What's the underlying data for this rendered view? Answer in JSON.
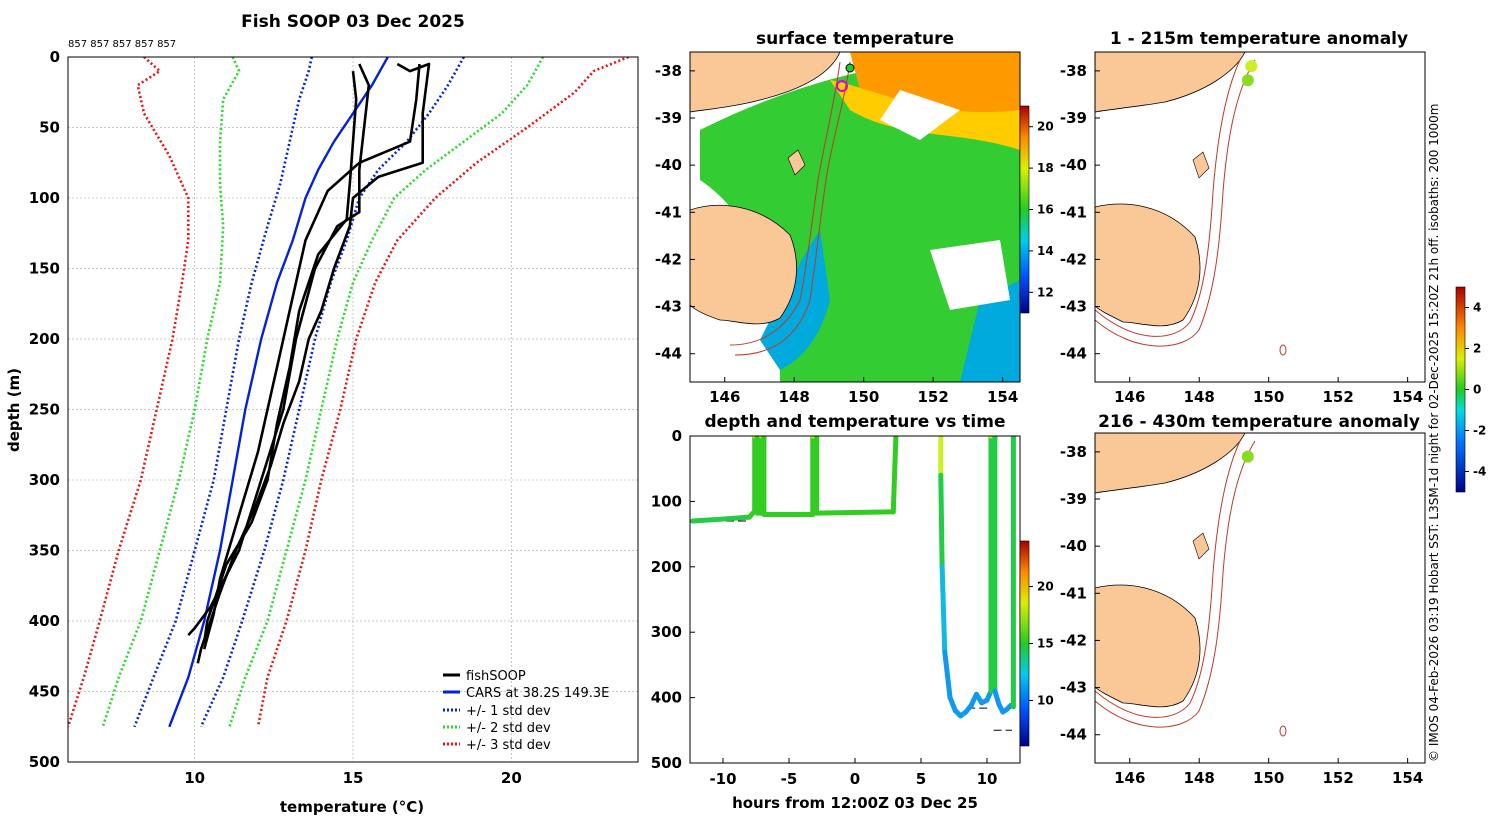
{
  "colors": {
    "land": "#f9c896",
    "isobath": "#c0392b",
    "fishsoop": "#000000",
    "cars": "#0022dd",
    "std1": "#0022dd",
    "std2": "#22dd22",
    "std3": "#ee1111",
    "ocean_warm": "#ff9900",
    "ocean_mid": "#33cc33",
    "ocean_cool": "#00aadd"
  },
  "profile_chart": {
    "type": "line",
    "title": "Fish SOOP 03 Dec 2025",
    "profile_ids": "857 857 857 857 857",
    "xlabel": "temperature",
    "xlabel_units": "(°C)",
    "ylabel": "depth (m)",
    "xlim": [
      6,
      24
    ],
    "ylim": [
      0,
      500
    ],
    "xticks": [
      "10",
      "15",
      "20"
    ],
    "yticks": [
      "0",
      "50",
      "100",
      "150",
      "200",
      "250",
      "300",
      "350",
      "400",
      "450",
      "500"
    ],
    "legend": [
      "fishSOOP",
      "CARS at 38.2S 149.3E",
      "+/- 1 std dev",
      "+/- 2 std dev",
      "+/- 3 std dev"
    ],
    "legend_position": "bottom-right",
    "series": {
      "cars": [
        [
          16.1,
          0
        ],
        [
          15.6,
          20
        ],
        [
          15.0,
          40
        ],
        [
          14.4,
          60
        ],
        [
          13.9,
          80
        ],
        [
          13.5,
          100
        ],
        [
          13.1,
          130
        ],
        [
          12.6,
          160
        ],
        [
          12.1,
          200
        ],
        [
          11.6,
          250
        ],
        [
          11.2,
          300
        ],
        [
          10.8,
          350
        ],
        [
          10.3,
          400
        ],
        [
          9.8,
          440
        ],
        [
          9.2,
          475
        ]
      ],
      "std1_lo": [
        [
          13.7,
          0
        ],
        [
          13.6,
          10
        ],
        [
          13.3,
          30
        ],
        [
          13.0,
          60
        ],
        [
          12.7,
          90
        ],
        [
          12.3,
          120
        ],
        [
          11.8,
          160
        ],
        [
          11.4,
          200
        ],
        [
          11.0,
          250
        ],
        [
          10.6,
          300
        ],
        [
          10.0,
          350
        ],
        [
          9.4,
          400
        ],
        [
          8.7,
          440
        ],
        [
          8.1,
          475
        ]
      ],
      "std1_hi": [
        [
          18.5,
          0
        ],
        [
          18.0,
          20
        ],
        [
          17.4,
          40
        ],
        [
          16.7,
          60
        ],
        [
          15.8,
          80
        ],
        [
          15.2,
          100
        ],
        [
          14.8,
          130
        ],
        [
          14.3,
          160
        ],
        [
          13.8,
          200
        ],
        [
          13.3,
          250
        ],
        [
          12.8,
          300
        ],
        [
          12.2,
          350
        ],
        [
          11.5,
          400
        ],
        [
          10.9,
          440
        ],
        [
          10.2,
          475
        ]
      ],
      "std2_lo": [
        [
          11.2,
          0
        ],
        [
          11.4,
          10
        ],
        [
          10.9,
          30
        ],
        [
          10.8,
          60
        ],
        [
          10.8,
          90
        ],
        [
          10.9,
          120
        ],
        [
          10.8,
          160
        ],
        [
          10.4,
          200
        ],
        [
          10.0,
          250
        ],
        [
          9.5,
          300
        ],
        [
          8.9,
          350
        ],
        [
          8.3,
          400
        ],
        [
          7.6,
          440
        ],
        [
          7.1,
          475
        ]
      ],
      "std2_hi": [
        [
          21.0,
          0
        ],
        [
          20.5,
          20
        ],
        [
          19.7,
          40
        ],
        [
          18.5,
          60
        ],
        [
          17.3,
          80
        ],
        [
          16.3,
          100
        ],
        [
          15.6,
          130
        ],
        [
          15.0,
          160
        ],
        [
          14.5,
          200
        ],
        [
          14.0,
          250
        ],
        [
          13.5,
          300
        ],
        [
          12.9,
          350
        ],
        [
          12.3,
          400
        ],
        [
          11.6,
          440
        ],
        [
          11.1,
          475
        ]
      ],
      "std3_lo": [
        [
          8.4,
          0
        ],
        [
          8.9,
          10
        ],
        [
          8.2,
          20
        ],
        [
          8.4,
          40
        ],
        [
          9.2,
          70
        ],
        [
          9.8,
          100
        ],
        [
          9.8,
          130
        ],
        [
          9.6,
          160
        ],
        [
          9.3,
          200
        ],
        [
          8.8,
          250
        ],
        [
          8.3,
          300
        ],
        [
          7.6,
          350
        ],
        [
          7.0,
          400
        ],
        [
          6.5,
          440
        ],
        [
          6.0,
          475
        ]
      ],
      "std3_hi": [
        [
          23.7,
          0
        ],
        [
          22.6,
          10
        ],
        [
          22.0,
          25
        ],
        [
          20.5,
          50
        ],
        [
          18.9,
          75
        ],
        [
          17.6,
          100
        ],
        [
          16.4,
          130
        ],
        [
          15.7,
          160
        ],
        [
          15.1,
          200
        ],
        [
          14.6,
          250
        ],
        [
          14.0,
          300
        ],
        [
          13.5,
          350
        ],
        [
          12.9,
          400
        ],
        [
          12.3,
          440
        ],
        [
          12.0,
          475
        ]
      ],
      "fishsoop_casts": [
        [
          [
            16.4,
            5
          ],
          [
            16.8,
            10
          ],
          [
            17.4,
            5
          ],
          [
            17.2,
            40
          ],
          [
            17.2,
            75
          ],
          [
            15.8,
            85
          ],
          [
            15.0,
            100
          ],
          [
            14.9,
            120
          ],
          [
            14.4,
            150
          ],
          [
            14.0,
            180
          ],
          [
            13.6,
            200
          ],
          [
            13.3,
            230
          ],
          [
            12.8,
            260
          ],
          [
            12.4,
            290
          ],
          [
            11.9,
            320
          ],
          [
            11.3,
            350
          ],
          [
            10.8,
            380
          ],
          [
            10.5,
            400
          ],
          [
            10.2,
            420
          ],
          [
            10.1,
            430
          ]
        ],
        [
          [
            15.2,
            5
          ],
          [
            15.5,
            20
          ],
          [
            15.4,
            40
          ],
          [
            15.3,
            60
          ],
          [
            15.2,
            80
          ],
          [
            15.2,
            100
          ],
          [
            15.2,
            110
          ],
          [
            14.5,
            120
          ],
          [
            13.8,
            150
          ],
          [
            13.2,
            200
          ],
          [
            12.8,
            250
          ],
          [
            12.1,
            300
          ],
          [
            11.4,
            350
          ],
          [
            10.5,
            390
          ],
          [
            10.0,
            405
          ],
          [
            9.8,
            410
          ]
        ],
        [
          [
            15.0,
            10
          ],
          [
            15.1,
            30
          ],
          [
            15.0,
            60
          ],
          [
            14.9,
            90
          ],
          [
            14.8,
            115
          ],
          [
            13.9,
            140
          ],
          [
            13.3,
            180
          ],
          [
            13.0,
            220
          ],
          [
            12.6,
            260
          ],
          [
            12.3,
            300
          ],
          [
            11.8,
            330
          ],
          [
            11.0,
            360
          ],
          [
            10.4,
            400
          ],
          [
            10.3,
            415
          ]
        ],
        [
          [
            17.1,
            5
          ],
          [
            17.0,
            30
          ],
          [
            16.8,
            60
          ],
          [
            15.2,
            75
          ],
          [
            14.2,
            95
          ],
          [
            13.5,
            130
          ],
          [
            13.1,
            170
          ],
          [
            12.7,
            210
          ],
          [
            12.3,
            250
          ],
          [
            12.0,
            280
          ],
          [
            11.6,
            310
          ],
          [
            11.2,
            340
          ],
          [
            10.8,
            370
          ],
          [
            10.6,
            395
          ],
          [
            10.3,
            420
          ]
        ]
      ]
    }
  },
  "sst_map": {
    "title": "surface temperature",
    "xticks": [
      "146",
      "148",
      "150",
      "152",
      "154"
    ],
    "yticks": [
      "-38",
      "-39",
      "-40",
      "-41",
      "-42",
      "-43",
      "-44"
    ],
    "colorbar_ticks": [
      "12",
      "14",
      "16",
      "18",
      "20"
    ],
    "colorbar_range": [
      11,
      21
    ]
  },
  "time_chart": {
    "type": "scatter",
    "title": "depth and temperature vs time",
    "xlabel": "hours from 12:00Z 03 Dec 25",
    "xticks": [
      "-10",
      "-5",
      "0",
      "5",
      "10"
    ],
    "yticks": [
      "0",
      "100",
      "200",
      "300",
      "400",
      "500"
    ],
    "xlim": [
      -12.5,
      12.5
    ],
    "ylim": [
      0,
      500
    ],
    "colorbar_ticks": [
      "10",
      "15",
      "20"
    ],
    "colorbar_range": [
      6,
      24
    ],
    "segments": [
      [
        [
          -12.3,
          130
        ],
        [
          -10,
          127
        ],
        [
          -8.0,
          124
        ],
        [
          -7.6,
          115
        ],
        [
          -7.6,
          0
        ],
        [
          -7.4,
          0
        ],
        [
          -7.4,
          118
        ],
        [
          -7.1,
          118
        ],
        [
          -7.1,
          0
        ],
        [
          -6.9,
          0
        ],
        [
          -6.9,
          120
        ],
        [
          -3.2,
          120
        ],
        [
          -3.2,
          0
        ],
        [
          -2.9,
          0
        ],
        [
          -2.9,
          118
        ],
        [
          2.9,
          116
        ],
        [
          3.1,
          0
        ]
      ],
      [
        [
          6.5,
          0
        ],
        [
          6.5,
          60
        ],
        [
          6.6,
          200
        ],
        [
          6.8,
          330
        ],
        [
          7.2,
          400
        ],
        [
          7.6,
          420
        ],
        [
          8.0,
          428
        ],
        [
          8.4,
          422
        ],
        [
          8.8,
          412
        ],
        [
          9.2,
          395
        ],
        [
          9.6,
          408
        ],
        [
          10.0,
          404
        ],
        [
          10.3,
          390
        ],
        [
          10.3,
          0
        ],
        [
          10.6,
          0
        ],
        [
          10.6,
          390
        ],
        [
          10.9,
          410
        ],
        [
          11.2,
          422
        ],
        [
          11.5,
          418
        ],
        [
          11.8,
          412
        ],
        [
          12.0,
          414
        ],
        [
          12.0,
          0
        ]
      ]
    ],
    "markers": [
      [
        -12.5,
        130,
        -8.2,
        130
      ],
      [
        3.0,
        116,
        -0.5,
        116
      ],
      [
        8.5,
        416,
        10.3,
        416
      ],
      [
        10.5,
        450,
        11.9,
        450
      ]
    ]
  },
  "anom_map_1": {
    "title": "1 - 215m temperature anomaly",
    "xticks": [
      "146",
      "148",
      "150",
      "152",
      "154"
    ],
    "yticks": [
      "-38",
      "-39",
      "-40",
      "-41",
      "-42",
      "-43",
      "-44"
    ],
    "points": [
      [
        149.5,
        -37.9,
        1.5
      ],
      [
        149.4,
        -38.2,
        1.0
      ]
    ]
  },
  "anom_map_2": {
    "title": "216 - 430m temperature anomaly",
    "xticks": [
      "146",
      "148",
      "150",
      "152",
      "154"
    ],
    "yticks": [
      "-38",
      "-39",
      "-40",
      "-41",
      "-42",
      "-43",
      "-44"
    ],
    "points": [
      [
        149.4,
        -38.1,
        0.3
      ]
    ]
  },
  "anomaly_colorbar": {
    "ticks": [
      "4",
      "2",
      "0",
      "-2",
      "-4"
    ],
    "range": [
      -5,
      5
    ]
  },
  "side_caption": "© IMOS 04-Feb-2026 03:19 Hobart SST: L3SM-1d night for 02-Dec-2025 15:20Z 21h off. isobaths: 200  1000m"
}
